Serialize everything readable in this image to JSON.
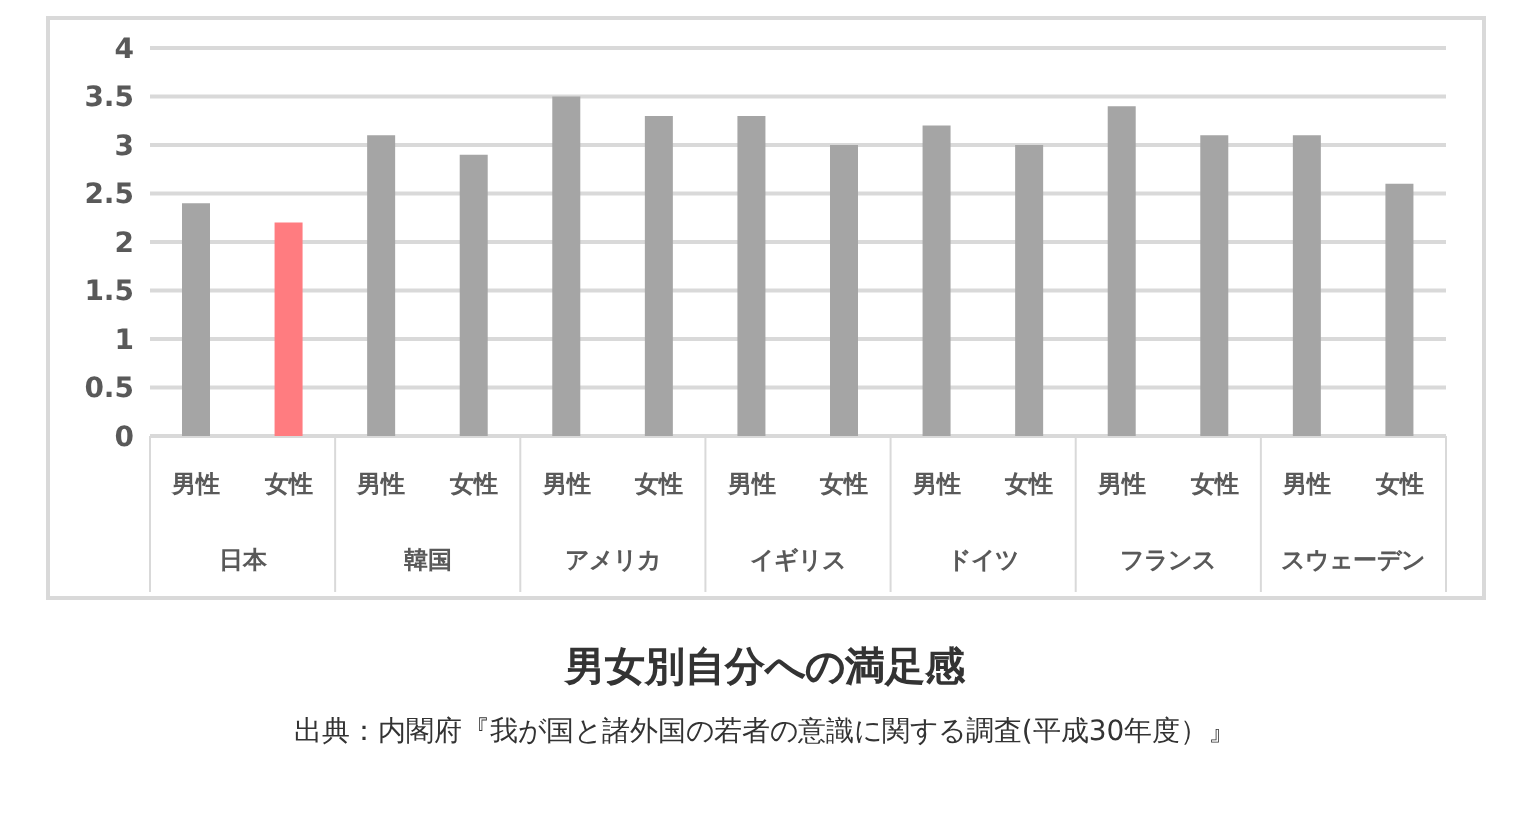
{
  "chart_data": {
    "type": "bar",
    "title": "男女別自分への満足感",
    "categories": [
      "男性",
      "女性",
      "男性",
      "女性",
      "男性",
      "女性",
      "男性",
      "女性",
      "男性",
      "女性",
      "男性",
      "女性",
      "男性",
      "女性"
    ],
    "values": [
      2.4,
      2.2,
      3.1,
      2.9,
      3.5,
      3.3,
      3.3,
      3.0,
      3.2,
      3.0,
      3.4,
      3.1,
      3.1,
      2.6
    ],
    "colors": [
      "#a5a5a5",
      "#ff7c80",
      "#a5a5a5",
      "#a5a5a5",
      "#a5a5a5",
      "#a5a5a5",
      "#a5a5a5",
      "#a5a5a5",
      "#a5a5a5",
      "#a5a5a5",
      "#a5a5a5",
      "#a5a5a5",
      "#a5a5a5",
      "#a5a5a5"
    ],
    "ylim": [
      0,
      4
    ],
    "yticks": [
      0,
      0.5,
      1,
      1.5,
      2,
      2.5,
      3,
      3.5,
      4
    ],
    "grid": "y",
    "legend": false,
    "annotations": [
      "日本",
      "韓国",
      "アメリカ",
      "イギリス",
      "ドイツ",
      "フランス",
      "スウェーデン",
      "出典：内閣府『我が国と諸外国の若者の意識に関する調査(平成30年度）』"
    ]
  }
}
